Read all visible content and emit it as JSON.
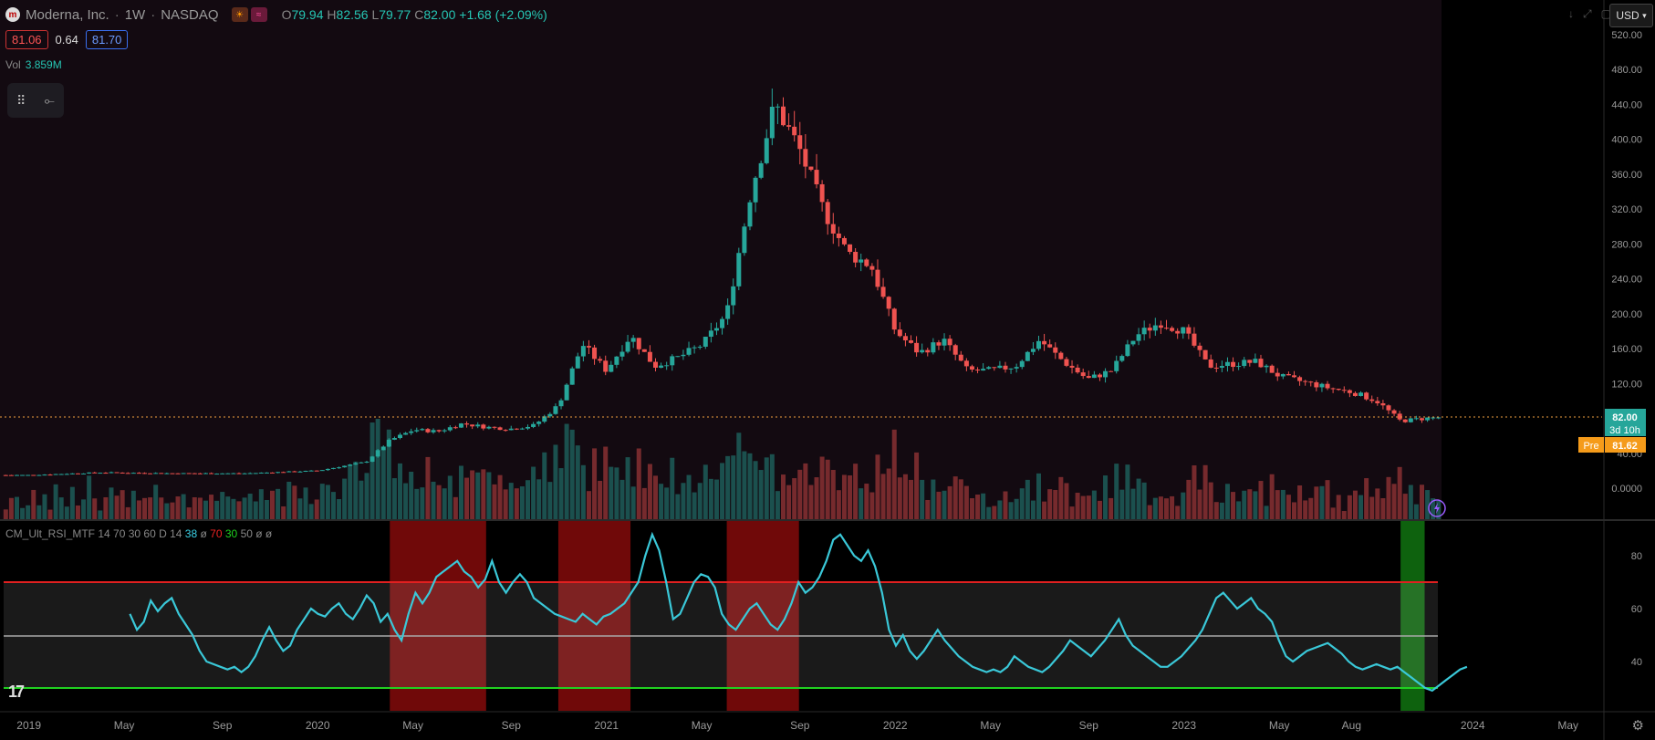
{
  "header": {
    "logo_letter": "m",
    "symbol": "Moderna, Inc.",
    "interval": "1W",
    "exchange": "NASDAQ",
    "ohlc": {
      "o_label": "O",
      "o": "79.94",
      "h_label": "H",
      "h": "82.56",
      "l_label": "L",
      "l": "79.77",
      "c_label": "C",
      "c": "82.00",
      "change": "+1.68 (+2.09%)"
    }
  },
  "quote": {
    "bid": "81.06",
    "spread": "0.64",
    "ask": "81.70"
  },
  "volume": {
    "label": "Vol",
    "value": "3.859M"
  },
  "currency": "USD",
  "rsi_header": {
    "name": "CM_Ult_RSI_MTF 14 70 30 60 D 14",
    "v1": "38",
    "v2": "ø",
    "v3": "70",
    "v4": "30",
    "v5": "50",
    "v6": "ø ø"
  },
  "colors": {
    "up": "#26a69a",
    "down": "#ef5350",
    "rsi": "#3ac8d8",
    "upper_line": "#e02020",
    "lower_line": "#20d020",
    "price_line": "#f0a040",
    "bg_price": "#130a11"
  },
  "chart_data": [
    {
      "type": "candlestick",
      "title": "Moderna, Inc. · 1W · NASDAQ",
      "x_tick_labels": [
        "2019",
        "May",
        "Sep",
        "2020",
        "May",
        "Sep",
        "2021",
        "May",
        "Sep",
        "2022",
        "May",
        "Sep",
        "2023",
        "May",
        "Aug",
        "2024",
        "May"
      ],
      "y_tick_labels": [
        "520.00",
        "480.00",
        "440.00",
        "400.00",
        "360.00",
        "320.00",
        "280.00",
        "240.00",
        "200.00",
        "160.00",
        "120.00",
        "80.00",
        "40.00",
        "0.0000"
      ],
      "ylim": [
        0,
        520
      ],
      "last_price": {
        "value": "82.00",
        "countdown": "3d 10h"
      },
      "pre_market": {
        "label": "Pre",
        "value": "81.62"
      },
      "approx_weekly_close": [
        [
          "2019-01",
          15
        ],
        [
          "2019-04",
          18
        ],
        [
          "2019-07",
          17
        ],
        [
          "2019-10",
          17
        ],
        [
          "2020-01",
          20
        ],
        [
          "2020-03",
          30
        ],
        [
          "2020-04",
          55
        ],
        [
          "2020-05",
          67
        ],
        [
          "2020-06",
          65
        ],
        [
          "2020-07",
          74
        ],
        [
          "2020-08",
          70
        ],
        [
          "2020-09",
          68
        ],
        [
          "2020-10",
          72
        ],
        [
          "2020-11",
          95
        ],
        [
          "2020-12",
          165
        ],
        [
          "2021-01",
          135
        ],
        [
          "2021-02",
          175
        ],
        [
          "2021-03",
          140
        ],
        [
          "2021-04",
          150
        ],
        [
          "2021-05",
          165
        ],
        [
          "2021-06",
          200
        ],
        [
          "2021-07",
          340
        ],
        [
          "2021-08",
          440
        ],
        [
          "2021-09",
          390
        ],
        [
          "2021-10",
          320
        ],
        [
          "2021-11",
          270
        ],
        [
          "2021-12",
          255
        ],
        [
          "2022-01",
          180
        ],
        [
          "2022-02",
          155
        ],
        [
          "2022-03",
          170
        ],
        [
          "2022-04",
          135
        ],
        [
          "2022-05",
          135
        ],
        [
          "2022-06",
          140
        ],
        [
          "2022-07",
          170
        ],
        [
          "2022-08",
          145
        ],
        [
          "2022-09",
          125
        ],
        [
          "2022-10",
          135
        ],
        [
          "2022-11",
          175
        ],
        [
          "2022-12",
          190
        ],
        [
          "2023-01",
          180
        ],
        [
          "2023-02",
          140
        ],
        [
          "2023-04",
          145
        ],
        [
          "2023-05",
          128
        ],
        [
          "2023-07",
          115
        ],
        [
          "2023-08",
          110
        ],
        [
          "2023-09",
          100
        ],
        [
          "2023-10",
          77
        ],
        [
          "2023-11",
          80
        ],
        [
          "2023-12",
          82
        ]
      ]
    },
    {
      "type": "line",
      "title": "CM_Ult_RSI_MTF 14 70 30 60 D 14",
      "y_tick_labels": [
        "80",
        "60",
        "40"
      ],
      "ylim": [
        22,
        96
      ],
      "levels": {
        "upper": 70,
        "mid": 50,
        "lower": 30
      },
      "approx_rsi": [
        58,
        52,
        55,
        63,
        59,
        62,
        64,
        58,
        54,
        50,
        44,
        40,
        39,
        38,
        37,
        38,
        36,
        38,
        42,
        48,
        53,
        48,
        44,
        46,
        52,
        56,
        60,
        58,
        57,
        60,
        62,
        58,
        56,
        60,
        65,
        62,
        55,
        58,
        52,
        48,
        58,
        66,
        62,
        66,
        72,
        74,
        76,
        78,
        74,
        72,
        68,
        71,
        78,
        70,
        66,
        70,
        73,
        70,
        64,
        62,
        60,
        58,
        57,
        56,
        55,
        58,
        56,
        54,
        57,
        58,
        60,
        62,
        66,
        70,
        80,
        88,
        82,
        70,
        56,
        58,
        64,
        70,
        73,
        72,
        68,
        58,
        54,
        52,
        56,
        60,
        62,
        58,
        54,
        52,
        56,
        62,
        70,
        66,
        68,
        72,
        78,
        86,
        88,
        84,
        80,
        78,
        82,
        76,
        66,
        52,
        46,
        50,
        44,
        41,
        44,
        48,
        52,
        48,
        45,
        42,
        40,
        38,
        37,
        36,
        37,
        36,
        38,
        42,
        40,
        38,
        37,
        36,
        38,
        41,
        44,
        48,
        46,
        44,
        42,
        45,
        48,
        52,
        56,
        50,
        46,
        44,
        42,
        40,
        38,
        38,
        40,
        42,
        45,
        48,
        52,
        58,
        64,
        66,
        63,
        60,
        62,
        64,
        60,
        58,
        55,
        48,
        42,
        40,
        42,
        44,
        45,
        46,
        47,
        45,
        43,
        40,
        38,
        37,
        38,
        39,
        38,
        37,
        38,
        36,
        34,
        32,
        30,
        29,
        31,
        33,
        35,
        37,
        38
      ],
      "shaded_regions": [
        {
          "color": "red",
          "from": "2020-04",
          "to": "2020-08"
        },
        {
          "color": "red",
          "from": "2020-11",
          "to": "2021-02"
        },
        {
          "color": "red",
          "from": "2021-06",
          "to": "2021-09"
        },
        {
          "color": "green",
          "from": "2023-10",
          "to": "2023-11"
        }
      ]
    }
  ]
}
